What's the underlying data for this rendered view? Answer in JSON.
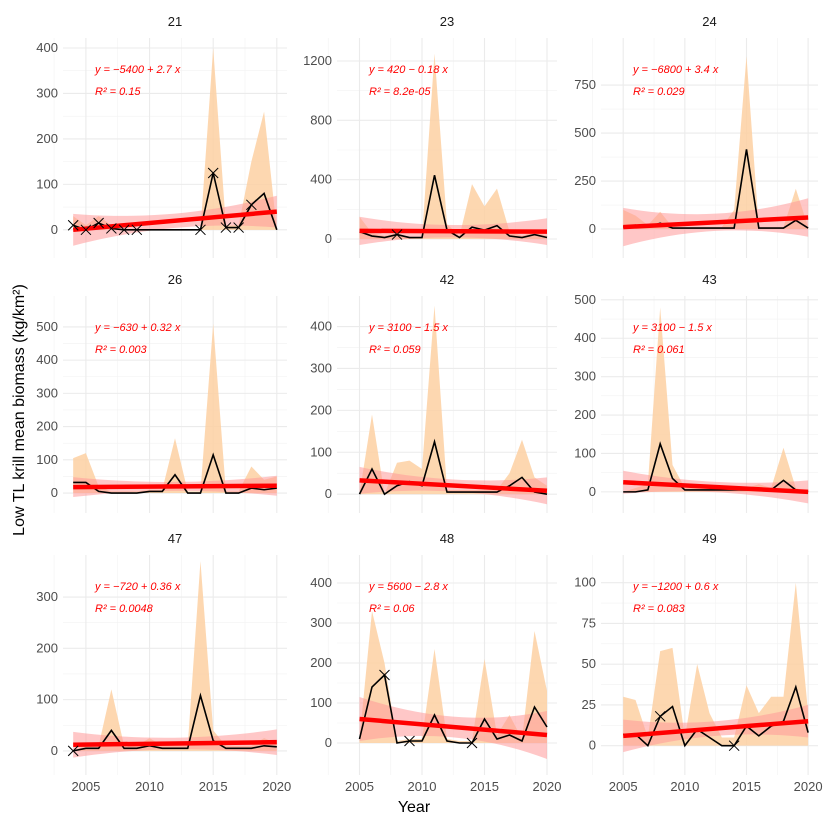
{
  "chart_data": {
    "type": "line",
    "ylabel": "Low TL krill mean biomass (kg/km²)",
    "xlabel": "Year",
    "colors": {
      "mean": "#000000",
      "range": "#fdd0a2",
      "trend": "#ff0000",
      "trend_ci": "#ff9999"
    },
    "panels": [
      {
        "title": "21",
        "eq": "y = −5400 + 2.7 x",
        "r2": "R² = 0.15",
        "xlim": [
          2003.2,
          2020.8
        ],
        "xticks": [
          2005,
          2010,
          2015,
          2020
        ],
        "ylim": [
          -62,
          422
        ],
        "yticks": [
          0,
          100,
          200,
          300,
          400
        ],
        "start": 2004,
        "mean": [
          10,
          0,
          15,
          3,
          0,
          0,
          0,
          0,
          0,
          0,
          0,
          125,
          5,
          5,
          55,
          80,
          0
        ],
        "upper": [
          30,
          10,
          30,
          10,
          0,
          0,
          0,
          0,
          0,
          0,
          0,
          400,
          10,
          10,
          150,
          260,
          0
        ],
        "trend": [
          0,
          40
        ],
        "ci": [
          35,
          35
        ],
        "markers": [
          2004,
          2005,
          2006,
          2007,
          2008,
          2009,
          2014,
          2015,
          2016,
          2017,
          2018
        ]
      },
      {
        "title": "23",
        "eq": "y = 420 − 0.18 x",
        "r2": "R² = 8.2e-05",
        "xlim": [
          2003.2,
          2020.8
        ],
        "xticks": [
          2005,
          2010,
          2015,
          2020
        ],
        "ylim": [
          -128,
          1355
        ],
        "yticks": [
          0,
          400,
          800,
          1200
        ],
        "start": 2005,
        "mean": [
          50,
          20,
          10,
          30,
          10,
          10,
          430,
          60,
          10,
          80,
          60,
          90,
          20,
          10,
          30,
          10
        ],
        "upper": [
          150,
          40,
          20,
          40,
          10,
          10,
          1250,
          100,
          20,
          370,
          220,
          340,
          50,
          20,
          50,
          20
        ],
        "trend": [
          55,
          50
        ],
        "ci": [
          95,
          90
        ],
        "markers": [
          2008
        ]
      },
      {
        "title": "24",
        "eq": "y = −6800 + 3.4 x",
        "r2": "R² = 0.029",
        "xlim": [
          2003.2,
          2020.8
        ],
        "xticks": [
          2005,
          2010,
          2015,
          2020
        ],
        "ylim": [
          -151,
          995
        ],
        "yticks": [
          0,
          250,
          500,
          750
        ],
        "start": 2005,
        "mean": [
          10,
          20,
          10,
          30,
          5,
          5,
          5,
          5,
          5,
          5,
          415,
          5,
          5,
          5,
          45,
          5
        ],
        "upper": [
          100,
          70,
          20,
          90,
          10,
          10,
          10,
          10,
          10,
          100,
          900,
          10,
          10,
          10,
          210,
          10
        ],
        "trend": [
          10,
          60
        ],
        "ci": [
          100,
          100
        ],
        "markers": []
      },
      {
        "title": "26",
        "eq": "y = −630 + 0.32 x",
        "r2": "R² = 0.003",
        "xlim": [
          2003.2,
          2020.8
        ],
        "xticks": [
          2005,
          2010,
          2015,
          2020
        ],
        "ylim": [
          -60,
          593
        ],
        "yticks": [
          0,
          100,
          200,
          300,
          400,
          500
        ],
        "start": 2004,
        "mean": [
          32,
          32,
          5,
          0,
          0,
          0,
          5,
          5,
          55,
          0,
          0,
          115,
          0,
          0,
          15,
          10,
          15
        ],
        "upper": [
          105,
          120,
          20,
          5,
          5,
          5,
          10,
          10,
          165,
          5,
          5,
          510,
          5,
          5,
          80,
          40,
          50
        ],
        "trend": [
          18,
          22
        ],
        "ci": [
          30,
          30
        ],
        "markers": []
      },
      {
        "title": "42",
        "eq": "y = 3100 − 1.5 x",
        "r2": "R² = 0.059",
        "xlim": [
          2003.2,
          2020.8
        ],
        "xticks": [
          2005,
          2010,
          2015,
          2020
        ],
        "ylim": [
          -45,
          473
        ],
        "yticks": [
          0,
          100,
          200,
          300,
          400
        ],
        "start": 2005,
        "mean": [
          0,
          60,
          0,
          20,
          30,
          20,
          125,
          5,
          5,
          5,
          5,
          5,
          20,
          40,
          5,
          0
        ],
        "upper": [
          0,
          190,
          0,
          75,
          80,
          60,
          450,
          10,
          10,
          10,
          10,
          10,
          50,
          130,
          40,
          20
        ],
        "trend": [
          33,
          8
        ],
        "ci": [
          32,
          32
        ],
        "markers": []
      },
      {
        "title": "43",
        "eq": "y = 3100 − 1.5 x",
        "r2": "R² = 0.061",
        "xlim": [
          2003.2,
          2020.8
        ],
        "xticks": [
          2005,
          2010,
          2015,
          2020
        ],
        "ylim": [
          -55,
          510
        ],
        "yticks": [
          0,
          100,
          200,
          300,
          400,
          500
        ],
        "start": 2005,
        "mean": [
          0,
          0,
          5,
          125,
          35,
          5,
          5,
          5,
          5,
          5,
          5,
          5,
          5,
          30,
          5,
          0
        ],
        "upper": [
          0,
          10,
          20,
          480,
          70,
          10,
          10,
          10,
          10,
          10,
          10,
          20,
          10,
          115,
          10,
          0
        ],
        "trend": [
          25,
          0
        ],
        "ci": [
          30,
          30
        ],
        "markers": []
      },
      {
        "title": "47",
        "eq": "y = −720 + 0.36 x",
        "r2": "R² = 0.0048",
        "xlim": [
          2003.2,
          2020.8
        ],
        "xticks": [
          2005,
          2010,
          2015,
          2020
        ],
        "ylim": [
          -47,
          382
        ],
        "yticks": [
          0,
          100,
          200,
          300
        ],
        "start": 2004,
        "mean": [
          0,
          5,
          5,
          40,
          5,
          5,
          10,
          5,
          5,
          5,
          108,
          20,
          5,
          5,
          5,
          10,
          8
        ],
        "upper": [
          0,
          10,
          10,
          120,
          10,
          10,
          25,
          10,
          10,
          10,
          370,
          40,
          10,
          10,
          10,
          25,
          15
        ],
        "trend": [
          12,
          17
        ],
        "ci": [
          25,
          25
        ],
        "markers": [
          2004
        ]
      },
      {
        "title": "48",
        "eq": "y = 5600 − 2.8 x",
        "r2": "R² = 0.06",
        "xlim": [
          2003.2,
          2020.8
        ],
        "xticks": [
          2005,
          2010,
          2015,
          2020
        ],
        "ylim": [
          -80,
          470
        ],
        "yticks": [
          0,
          100,
          200,
          300,
          400
        ],
        "start": 2005,
        "mean": [
          10,
          140,
          170,
          0,
          5,
          5,
          70,
          5,
          0,
          0,
          60,
          10,
          20,
          5,
          90,
          40
        ],
        "upper": [
          10,
          330,
          200,
          5,
          10,
          10,
          235,
          10,
          5,
          5,
          210,
          20,
          70,
          10,
          280,
          130
        ],
        "trend": [
          60,
          20
        ],
        "ci": [
          55,
          60
        ],
        "markers": [
          2007,
          2009,
          2014
        ]
      },
      {
        "title": "49",
        "eq": "y = −1200 + 0.6 x",
        "r2": "R² = 0.083",
        "xlim": [
          2003.2,
          2020.8
        ],
        "xticks": [
          2005,
          2010,
          2015,
          2020
        ],
        "ylim": [
          -18,
          117
        ],
        "yticks": [
          0,
          25,
          50,
          75,
          100
        ],
        "start": 2005,
        "mean": [
          7,
          7,
          0,
          18,
          24,
          0,
          10,
          5,
          0,
          0,
          12,
          6,
          12,
          15,
          36,
          8
        ],
        "upper": [
          30,
          28,
          5,
          58,
          60,
          5,
          50,
          20,
          5,
          5,
          37,
          20,
          30,
          30,
          100,
          20
        ],
        "trend": [
          6,
          15
        ],
        "ci": [
          10,
          10
        ],
        "markers": [
          2008,
          2014
        ]
      }
    ]
  }
}
